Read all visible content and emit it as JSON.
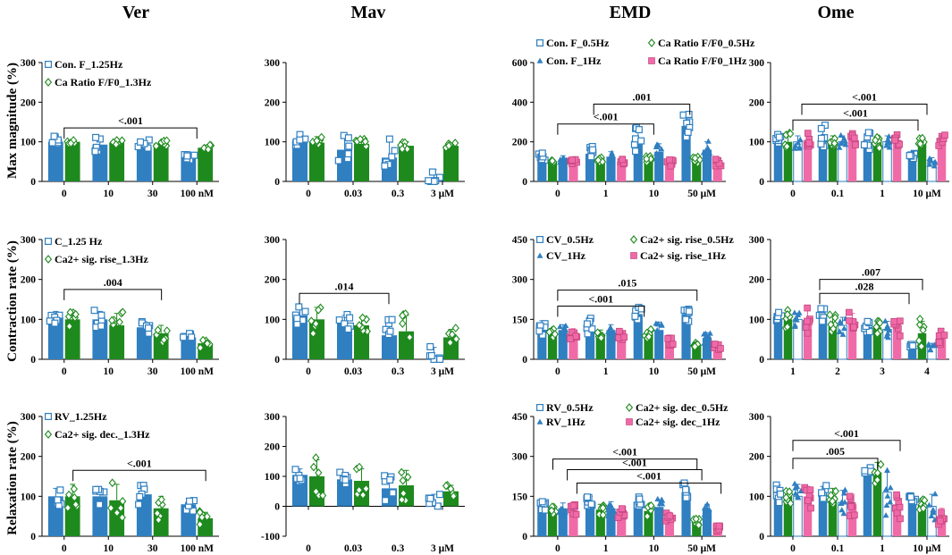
{
  "figure": {
    "column_titles": [
      "Ver",
      "Mav",
      "EMD",
      "Ome"
    ],
    "row_ylabels": [
      "Max magnitude (%)",
      "Contraction rate (%)",
      "Relaxation rate (%)"
    ]
  },
  "colors": {
    "blue": "#2f7fc1",
    "green": "#1e8a1e",
    "pink": "#f06aa8",
    "white": "#ffffff"
  },
  "chart_data": [
    {
      "id": "ver-mag",
      "type": "bar",
      "ylim": [
        0,
        300
      ],
      "yticks": [
        0,
        100,
        200,
        300
      ],
      "categories": [
        "0",
        "10",
        "30",
        "100 nM"
      ],
      "series": [
        {
          "name": "Con. F_1.25Hz",
          "color": "#2f7fc1",
          "marker": "square",
          "values": [
            100,
            93,
            87,
            60
          ],
          "err": [
            12,
            15,
            15,
            8
          ]
        },
        {
          "name": "Ca Ratio F/F0_1.3Hz",
          "color": "#1e8a1e",
          "marker": "diamond",
          "values": [
            100,
            98,
            96,
            85
          ],
          "err": [
            6,
            5,
            5,
            4
          ]
        }
      ],
      "brackets": [
        {
          "from": 0,
          "to": 3,
          "y": 135,
          "label": "<.001"
        }
      ]
    },
    {
      "id": "mav-mag",
      "type": "bar",
      "ylim": [
        0,
        300
      ],
      "yticks": [
        0,
        100,
        200,
        300
      ],
      "categories": [
        "0",
        "0.03",
        "0.3",
        "3 μM"
      ],
      "series": [
        {
          "name": "blue",
          "color": "#2f7fc1",
          "marker": "square",
          "values": [
            105,
            80,
            60,
            10
          ],
          "err": [
            20,
            30,
            40,
            20
          ]
        },
        {
          "name": "green",
          "color": "#1e8a1e",
          "marker": "diamond",
          "values": [
            98,
            95,
            90,
            90
          ],
          "err": [
            15,
            10,
            10,
            5
          ]
        }
      ],
      "brackets": []
    },
    {
      "id": "emd-mag",
      "type": "bar",
      "ylim": [
        0,
        600
      ],
      "yticks": [
        0,
        200,
        400,
        600
      ],
      "categories": [
        "0",
        "1",
        "10",
        "50 μM"
      ],
      "series": [
        {
          "name": "Con. F_0.5Hz",
          "color": "#2f7fc1",
          "marker": "square",
          "values": [
            120,
            140,
            215,
            280
          ],
          "err": [
            25,
            30,
            60,
            60
          ]
        },
        {
          "name": "Ca Ratio F/F0_0.5Hz",
          "color": "#1e8a1e",
          "marker": "diamond",
          "values": [
            100,
            110,
            110,
            110
          ],
          "err": [
            10,
            12,
            15,
            15
          ]
        },
        {
          "name": "Con. F_1Hz",
          "color": "#2f7fc1",
          "marker": "triangle",
          "values": [
            110,
            125,
            150,
            160
          ],
          "err": [
            20,
            25,
            40,
            40
          ]
        },
        {
          "name": "Ca Ratio F/F0_1Hz",
          "color": "#f06aa8",
          "marker": "pinksq",
          "values": [
            100,
            100,
            95,
            95
          ],
          "err": [
            10,
            10,
            15,
            15
          ]
        }
      ],
      "brackets": [
        {
          "from": 0,
          "to": 2,
          "y": 290,
          "label": "<.001"
        },
        {
          "from": 0,
          "to": 2,
          "y": 390,
          "label": ".001",
          "ends": [
            0.75,
            2.75
          ]
        }
      ]
    },
    {
      "id": "ome-mag",
      "type": "bar",
      "ylim": [
        0,
        300
      ],
      "yticks": [
        0,
        100,
        200,
        300
      ],
      "categories": [
        "0",
        "0.1",
        "1",
        "10 μM"
      ],
      "series": [
        {
          "name": "blue",
          "color": "#2f7fc1",
          "marker": "square",
          "values": [
            108,
            115,
            100,
            65
          ],
          "err": [
            10,
            25,
            20,
            5
          ]
        },
        {
          "name": "green",
          "color": "#1e8a1e",
          "marker": "diamond",
          "values": [
            100,
            100,
            100,
            100
          ],
          "err": [
            20,
            15,
            15,
            10
          ]
        },
        {
          "name": "white",
          "color": "#ffffff",
          "marker": "triangle",
          "values": [
            100,
            100,
            100,
            50
          ],
          "err": [
            15,
            15,
            15,
            10
          ]
        },
        {
          "name": "pink",
          "color": "#f06aa8",
          "marker": "pinksq",
          "values": [
            105,
            108,
            105,
            100
          ],
          "err": [
            15,
            15,
            15,
            15
          ]
        }
      ],
      "brackets": [
        {
          "from": 0,
          "to": 3,
          "y": 195,
          "label": "<.001",
          "ends": [
            0.2,
            3.0
          ]
        },
        {
          "from": 0,
          "to": 3,
          "y": 155,
          "label": "<.001",
          "ends": [
            0.0,
            2.8
          ]
        }
      ]
    },
    {
      "id": "ver-con",
      "type": "bar",
      "ylim": [
        0,
        300
      ],
      "yticks": [
        0,
        100,
        200,
        300
      ],
      "categories": [
        "0",
        "10",
        "30",
        "100 nM"
      ],
      "series": [
        {
          "name": "C_1.25 Hz",
          "color": "#2f7fc1",
          "marker": "square",
          "values": [
            105,
            100,
            80,
            55
          ],
          "err": [
            15,
            20,
            15,
            8
          ]
        },
        {
          "name": "Ca2+ sig. rise_1.3Hz",
          "color": "#1e8a1e",
          "marker": "diamond",
          "values": [
            100,
            85,
            65,
            40
          ],
          "err": [
            20,
            30,
            20,
            10
          ]
        }
      ],
      "brackets": [
        {
          "from": 0,
          "to": 2,
          "y": 175,
          "label": ".004",
          "ends": [
            0.0,
            2.2
          ]
        }
      ]
    },
    {
      "id": "mav-con",
      "type": "bar",
      "ylim": [
        0,
        300
      ],
      "yticks": [
        0,
        100,
        200,
        300
      ],
      "categories": [
        "0",
        "0.03",
        "0.3",
        "3 μM"
      ],
      "series": [
        {
          "name": "blue",
          "color": "#2f7fc1",
          "marker": "square",
          "values": [
            110,
            90,
            60,
            10
          ],
          "err": [
            20,
            20,
            35,
            20
          ]
        },
        {
          "name": "green",
          "color": "#1e8a1e",
          "marker": "diamond",
          "values": [
            100,
            85,
            70,
            55
          ],
          "err": [
            30,
            20,
            40,
            20
          ]
        }
      ],
      "brackets": [
        {
          "from": 0,
          "to": 2,
          "y": 165,
          "label": ".014",
          "ends": [
            -0.2,
            1.8
          ]
        }
      ]
    },
    {
      "id": "emd-con",
      "type": "bar",
      "ylim": [
        0,
        450
      ],
      "yticks": [
        0,
        150,
        300,
        450
      ],
      "categories": [
        "0",
        "1",
        "10",
        "50 μM"
      ],
      "series": [
        {
          "name": "CV_0.5Hz",
          "color": "#2f7fc1",
          "marker": "square",
          "values": [
            120,
            125,
            170,
            170
          ],
          "err": [
            25,
            25,
            25,
            25
          ]
        },
        {
          "name": "Ca2+ sig. rise_0.5Hz",
          "color": "#1e8a1e",
          "marker": "diamond",
          "values": [
            100,
            95,
            95,
            55
          ],
          "err": [
            15,
            15,
            15,
            10
          ]
        },
        {
          "name": "CV_1Hz",
          "color": "#2f7fc1",
          "marker": "triangle",
          "values": [
            110,
            110,
            110,
            80
          ],
          "err": [
            20,
            20,
            30,
            20
          ]
        },
        {
          "name": "Ca2+ sig. rise_1Hz",
          "color": "#f06aa8",
          "marker": "pinksq",
          "values": [
            95,
            90,
            65,
            45
          ],
          "err": [
            20,
            15,
            20,
            10
          ]
        }
      ],
      "brackets": [
        {
          "from": 0,
          "to": 2,
          "y": 200,
          "label": "<.001",
          "ends": [
            0.0,
            1.8
          ]
        },
        {
          "from": 0,
          "to": 2,
          "y": 260,
          "label": ".015",
          "ends": [
            0.0,
            2.9
          ]
        }
      ]
    },
    {
      "id": "ome-con",
      "type": "bar",
      "ylim": [
        0,
        300
      ],
      "yticks": [
        0,
        100,
        200,
        300
      ],
      "categories": [
        "1",
        "2",
        "3",
        "4"
      ],
      "series": [
        {
          "name": "blue",
          "color": "#2f7fc1",
          "marker": "square",
          "values": [
            108,
            110,
            80,
            35
          ],
          "err": [
            10,
            15,
            15,
            5
          ]
        },
        {
          "name": "green",
          "color": "#1e8a1e",
          "marker": "diamond",
          "values": [
            100,
            90,
            80,
            65
          ],
          "err": [
            20,
            20,
            15,
            30
          ]
        },
        {
          "name": "white",
          "color": "#ffffff",
          "marker": "triangle",
          "values": [
            100,
            85,
            75,
            30
          ],
          "err": [
            15,
            20,
            20,
            10
          ]
        },
        {
          "name": "pink",
          "color": "#f06aa8",
          "marker": "pinksq",
          "values": [
            100,
            95,
            80,
            55
          ],
          "err": [
            30,
            20,
            20,
            20
          ]
        }
      ],
      "brackets": [
        {
          "from": 0,
          "to": 2,
          "y": 165,
          "label": ".028",
          "ends": [
            0.6,
            2.6
          ]
        },
        {
          "from": 0,
          "to": 2,
          "y": 200,
          "label": ".007",
          "ends": [
            0.6,
            2.9
          ]
        }
      ]
    },
    {
      "id": "ver-rel",
      "type": "bar",
      "ylim": [
        0,
        300
      ],
      "yticks": [
        0,
        100,
        200,
        300
      ],
      "categories": [
        "0",
        "10",
        "30",
        "100 nM"
      ],
      "series": [
        {
          "name": "RV_1.25Hz",
          "color": "#2f7fc1",
          "marker": "square",
          "values": [
            100,
            100,
            105,
            80
          ],
          "err": [
            20,
            20,
            25,
            15
          ]
        },
        {
          "name": "Ca2+ sig. dec._1.3Hz",
          "color": "#1e8a1e",
          "marker": "diamond",
          "values": [
            100,
            90,
            70,
            45
          ],
          "err": [
            30,
            40,
            30,
            15
          ]
        }
      ],
      "brackets": [
        {
          "from": 0,
          "to": 3,
          "y": 165,
          "label": "<.001",
          "ends": [
            0.2,
            3.2
          ]
        }
      ]
    },
    {
      "id": "mav-rel",
      "type": "bar",
      "ylim": [
        -100,
        300
      ],
      "yticks": [
        -100,
        0,
        100,
        200,
        300
      ],
      "categories": [
        "0",
        "0.03",
        "0.3",
        "3 μM"
      ],
      "series": [
        {
          "name": "blue",
          "color": "#2f7fc1",
          "marker": "square",
          "values": [
            105,
            90,
            60,
            10
          ],
          "err": [
            20,
            20,
            40,
            30
          ]
        },
        {
          "name": "green",
          "color": "#1e8a1e",
          "marker": "diamond",
          "values": [
            100,
            85,
            70,
            50
          ],
          "err": [
            55,
            40,
            50,
            20
          ]
        }
      ],
      "brackets": []
    },
    {
      "id": "emd-rel",
      "type": "bar",
      "ylim": [
        0,
        450
      ],
      "yticks": [
        0,
        150,
        300,
        450
      ],
      "categories": [
        "0",
        "1",
        "10",
        "50 μM"
      ],
      "series": [
        {
          "name": "RV_0.5Hz",
          "color": "#2f7fc1",
          "marker": "square",
          "values": [
            120,
            130,
            130,
            165
          ],
          "err": [
            20,
            20,
            15,
            30
          ]
        },
        {
          "name": "Ca2+ sig. dec_0.5Hz",
          "color": "#1e8a1e",
          "marker": "diamond",
          "values": [
            100,
            100,
            95,
            50
          ],
          "err": [
            15,
            20,
            20,
            15
          ]
        },
        {
          "name": "RV_1Hz",
          "color": "#2f7fc1",
          "marker": "triangle",
          "values": [
            105,
            105,
            110,
            100
          ],
          "err": [
            20,
            25,
            25,
            20
          ]
        },
        {
          "name": "Ca2+ sig. dec_1Hz",
          "color": "#f06aa8",
          "marker": "pinksq",
          "values": [
            100,
            90,
            75,
            30
          ],
          "err": [
            20,
            20,
            15,
            10
          ]
        }
      ],
      "brackets": [
        {
          "from": 0,
          "to": 3,
          "y": 200,
          "label": "<.001",
          "ends": [
            0.4,
            3.4
          ]
        },
        {
          "from": 0,
          "to": 3,
          "y": 250,
          "label": "<.001",
          "ends": [
            0.2,
            3.0
          ]
        },
        {
          "from": 0,
          "to": 3,
          "y": 290,
          "label": "<.001",
          "ends": [
            -0.1,
            2.9
          ]
        }
      ]
    },
    {
      "id": "ome-rel",
      "type": "bar",
      "ylim": [
        0,
        300
      ],
      "yticks": [
        0,
        100,
        200,
        300
      ],
      "categories": [
        "0",
        "0.1",
        "1",
        "10 μM"
      ],
      "series": [
        {
          "name": "blue",
          "color": "#2f7fc1",
          "marker": "square",
          "values": [
            108,
            110,
            160,
            90
          ],
          "err": [
            20,
            15,
            10,
            10
          ]
        },
        {
          "name": "green",
          "color": "#1e8a1e",
          "marker": "diamond",
          "values": [
            100,
            100,
            160,
            80
          ],
          "err": [
            15,
            20,
            25,
            15
          ]
        },
        {
          "name": "white",
          "color": "#ffffff",
          "marker": "triangle",
          "values": [
            100,
            85,
            110,
            75
          ],
          "err": [
            30,
            30,
            50,
            30
          ]
        },
        {
          "name": "pink",
          "color": "#f06aa8",
          "marker": "pinksq",
          "values": [
            100,
            80,
            80,
            50
          ],
          "err": [
            25,
            25,
            30,
            20
          ]
        }
      ],
      "brackets": [
        {
          "from": 0,
          "to": 2,
          "y": 195,
          "label": ".005",
          "ends": [
            0.0,
            1.9
          ]
        },
        {
          "from": 0,
          "to": 2,
          "y": 240,
          "label": "<.001",
          "ends": [
            0.0,
            2.4
          ]
        }
      ]
    }
  ]
}
